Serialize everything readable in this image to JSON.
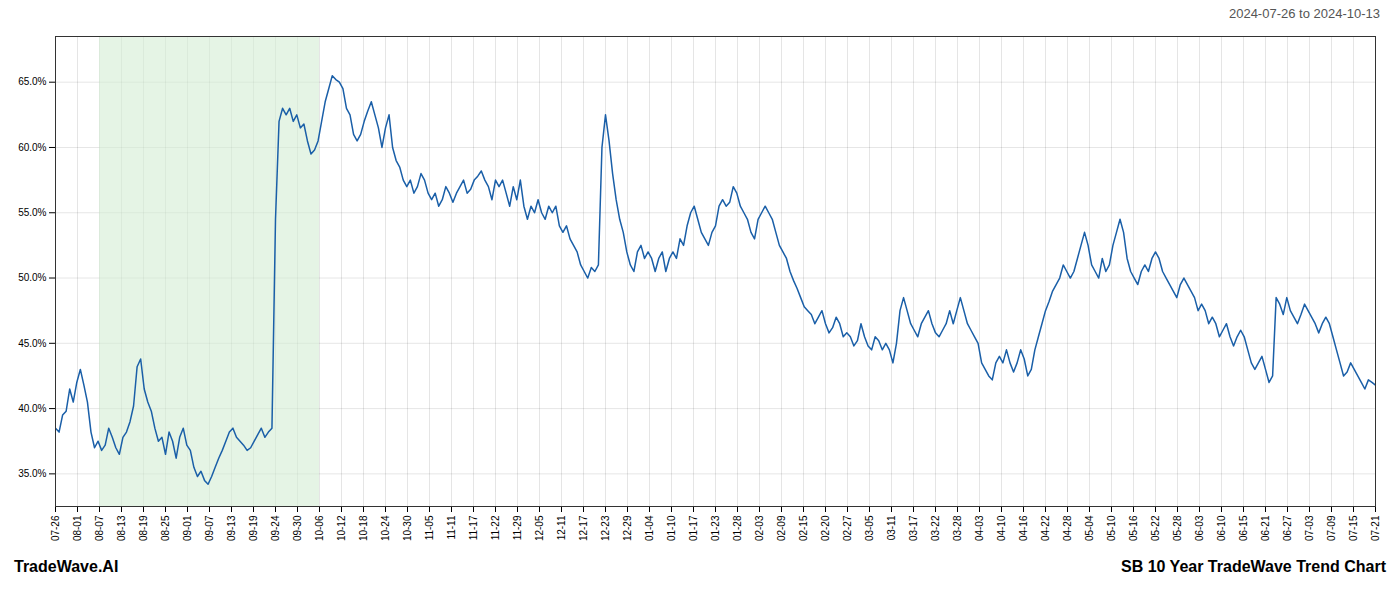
{
  "chart_data": {
    "type": "line",
    "title": "SB 10 Year TradeWave Trend Chart",
    "subtitle": "2024-07-26 to 2024-10-13",
    "annotations": [
      "TradeWave.AI"
    ],
    "color": "#1a5fa8",
    "grid": true,
    "shade": {
      "from": "08-07",
      "to": "10-06",
      "color": "#d4ecd4"
    },
    "xlim": [
      0,
      60
    ],
    "xticks": [
      {
        "value": 0,
        "label": "07-26"
      },
      {
        "value": 1,
        "label": "08-01"
      },
      {
        "value": 2,
        "label": "08-07"
      },
      {
        "value": 3,
        "label": "08-13"
      },
      {
        "value": 4,
        "label": "08-19"
      },
      {
        "value": 5,
        "label": "08-25"
      },
      {
        "value": 6,
        "label": "09-01"
      },
      {
        "value": 7,
        "label": "09-07"
      },
      {
        "value": 8,
        "label": "09-13"
      },
      {
        "value": 9,
        "label": "09-19"
      },
      {
        "value": 10,
        "label": "09-24"
      },
      {
        "value": 11,
        "label": "09-30"
      },
      {
        "value": 12,
        "label": "10-06"
      },
      {
        "value": 13,
        "label": "10-12"
      },
      {
        "value": 14,
        "label": "10-18"
      },
      {
        "value": 15,
        "label": "10-24"
      },
      {
        "value": 16,
        "label": "10-30"
      },
      {
        "value": 17,
        "label": "11-05"
      },
      {
        "value": 18,
        "label": "11-11"
      },
      {
        "value": 19,
        "label": "11-17"
      },
      {
        "value": 20,
        "label": "11-22"
      },
      {
        "value": 21,
        "label": "11-29"
      },
      {
        "value": 22,
        "label": "12-05"
      },
      {
        "value": 23,
        "label": "12-11"
      },
      {
        "value": 24,
        "label": "12-17"
      },
      {
        "value": 25,
        "label": "12-23"
      },
      {
        "value": 26,
        "label": "12-29"
      },
      {
        "value": 27,
        "label": "01-04"
      },
      {
        "value": 28,
        "label": "01-10"
      },
      {
        "value": 29,
        "label": "01-17"
      },
      {
        "value": 30,
        "label": "01-23"
      },
      {
        "value": 31,
        "label": "01-28"
      },
      {
        "value": 32,
        "label": "02-03"
      },
      {
        "value": 33,
        "label": "02-09"
      },
      {
        "value": 34,
        "label": "02-15"
      },
      {
        "value": 35,
        "label": "02-20"
      },
      {
        "value": 36,
        "label": "02-27"
      },
      {
        "value": 37,
        "label": "03-05"
      },
      {
        "value": 38,
        "label": "03-11"
      },
      {
        "value": 39,
        "label": "03-17"
      },
      {
        "value": 40,
        "label": "03-22"
      },
      {
        "value": 41,
        "label": "03-28"
      },
      {
        "value": 42,
        "label": "04-03"
      },
      {
        "value": 43,
        "label": "04-10"
      },
      {
        "value": 44,
        "label": "04-16"
      },
      {
        "value": 45,
        "label": "04-22"
      },
      {
        "value": 46,
        "label": "04-28"
      },
      {
        "value": 47,
        "label": "05-04"
      },
      {
        "value": 48,
        "label": "05-10"
      },
      {
        "value": 49,
        "label": "05-16"
      },
      {
        "value": 50,
        "label": "05-22"
      },
      {
        "value": 51,
        "label": "05-28"
      },
      {
        "value": 52,
        "label": "06-03"
      },
      {
        "value": 53,
        "label": "06-10"
      },
      {
        "value": 54,
        "label": "06-15"
      },
      {
        "value": 55,
        "label": "06-21"
      },
      {
        "value": 56,
        "label": "06-27"
      },
      {
        "value": 57,
        "label": "07-03"
      },
      {
        "value": 58,
        "label": "07-09"
      },
      {
        "value": 59,
        "label": "07-15"
      },
      {
        "value": 60,
        "label": "07-21"
      }
    ],
    "ylim": [
      32.5,
      68.5
    ],
    "yticks": [
      {
        "value": 35.0,
        "label": "35.0%"
      },
      {
        "value": 40.0,
        "label": "40.0%"
      },
      {
        "value": 45.0,
        "label": "45.0%"
      },
      {
        "value": 50.0,
        "label": "50.0%"
      },
      {
        "value": 55.0,
        "label": "55.0%"
      },
      {
        "value": 60.0,
        "label": "60.0%"
      },
      {
        "value": 65.0,
        "label": "65.0%"
      }
    ],
    "values": [
      38.5,
      38.2,
      39.5,
      39.8,
      41.5,
      40.5,
      42.0,
      43.0,
      41.8,
      40.5,
      38.2,
      37.0,
      37.5,
      36.8,
      37.2,
      38.5,
      37.8,
      37.0,
      36.5,
      37.8,
      38.2,
      39.0,
      40.2,
      43.2,
      43.8,
      41.5,
      40.5,
      39.8,
      38.5,
      37.5,
      37.8,
      36.5,
      38.2,
      37.5,
      36.2,
      37.8,
      38.5,
      37.2,
      36.8,
      35.5,
      34.8,
      35.2,
      34.5,
      34.2,
      34.8,
      35.5,
      36.2,
      36.8,
      37.5,
      38.2,
      38.5,
      37.8,
      37.5,
      37.2,
      36.8,
      37.0,
      37.5,
      38.0,
      38.5,
      37.8,
      38.2,
      38.5,
      54.5,
      62.0,
      63.0,
      62.5,
      63.0,
      62.0,
      62.5,
      61.5,
      61.8,
      60.5,
      59.5,
      59.8,
      60.5,
      62.0,
      63.5,
      64.5,
      65.5,
      65.2,
      65.0,
      64.5,
      63.0,
      62.5,
      61.0,
      60.5,
      61.0,
      62.0,
      62.8,
      63.5,
      62.5,
      61.5,
      60.0,
      61.5,
      62.5,
      60.0,
      59.0,
      58.5,
      57.5,
      57.0,
      57.5,
      56.5,
      57.0,
      58.0,
      57.5,
      56.5,
      56.0,
      56.5,
      55.5,
      56.0,
      57.0,
      56.5,
      55.8,
      56.5,
      57.0,
      57.5,
      56.5,
      56.8,
      57.5,
      57.8,
      58.2,
      57.5,
      57.0,
      56.0,
      57.5,
      57.0,
      57.5,
      56.5,
      55.5,
      57.0,
      56.0,
      57.5,
      55.5,
      54.5,
      55.5,
      55.0,
      56.0,
      55.0,
      54.5,
      55.5,
      55.0,
      55.5,
      54.0,
      53.5,
      54.0,
      53.0,
      52.5,
      52.0,
      51.0,
      50.5,
      50.0,
      50.8,
      50.5,
      51.0,
      60.0,
      62.5,
      60.5,
      58.0,
      56.0,
      54.5,
      53.5,
      52.0,
      51.0,
      50.5,
      52.0,
      52.5,
      51.5,
      52.0,
      51.5,
      50.5,
      51.5,
      52.0,
      50.5,
      51.5,
      52.0,
      51.5,
      53.0,
      52.5,
      54.0,
      55.0,
      55.5,
      54.5,
      53.5,
      53.0,
      52.5,
      53.5,
      54.0,
      55.5,
      56.0,
      55.5,
      55.8,
      57.0,
      56.5,
      55.5,
      55.0,
      54.5,
      53.5,
      53.0,
      54.5,
      55.0,
      55.5,
      55.0,
      54.5,
      53.5,
      52.5,
      52.0,
      51.5,
      50.5,
      49.8,
      49.2,
      48.5,
      47.8,
      47.5,
      47.2,
      46.5,
      47.0,
      47.5,
      46.5,
      45.8,
      46.2,
      47.0,
      46.5,
      45.5,
      45.8,
      45.5,
      44.8,
      45.2,
      46.5,
      45.5,
      44.8,
      44.5,
      45.5,
      45.2,
      44.5,
      45.0,
      44.5,
      43.5,
      45.0,
      47.5,
      48.5,
      47.5,
      46.5,
      46.0,
      45.5,
      46.5,
      47.0,
      47.5,
      46.5,
      45.8,
      45.5,
      46.0,
      46.5,
      47.5,
      46.5,
      47.5,
      48.5,
      47.5,
      46.5,
      46.0,
      45.5,
      45.0,
      43.5,
      43.0,
      42.5,
      42.2,
      43.5,
      44.0,
      43.5,
      44.5,
      43.5,
      42.8,
      43.5,
      44.5,
      43.8,
      42.5,
      43.0,
      44.5,
      45.5,
      46.5,
      47.5,
      48.2,
      49.0,
      49.5,
      50.0,
      51.0,
      50.5,
      50.0,
      50.5,
      51.5,
      52.5,
      53.5,
      52.5,
      51.0,
      50.5,
      50.0,
      51.5,
      50.5,
      51.0,
      52.5,
      53.5,
      54.5,
      53.5,
      51.5,
      50.5,
      50.0,
      49.5,
      50.5,
      51.0,
      50.5,
      51.5,
      52.0,
      51.5,
      50.5,
      50.0,
      49.5,
      49.0,
      48.5,
      49.5,
      50.0,
      49.5,
      49.0,
      48.5,
      47.5,
      48.0,
      47.5,
      46.5,
      47.0,
      46.5,
      45.5,
      46.0,
      46.5,
      45.5,
      44.8,
      45.5,
      46.0,
      45.5,
      44.5,
      43.5,
      43.0,
      43.5,
      44.0,
      43.0,
      42.0,
      42.5,
      48.5,
      48.0,
      47.2,
      48.5,
      47.5,
      47.0,
      46.5,
      47.2,
      48.0,
      47.5,
      47.0,
      46.5,
      45.8,
      46.5,
      47.0,
      46.5,
      45.5,
      44.5,
      43.5,
      42.5,
      42.8,
      43.5,
      43.0,
      42.5,
      42.0,
      41.5,
      42.2,
      42.0,
      41.8
    ]
  }
}
